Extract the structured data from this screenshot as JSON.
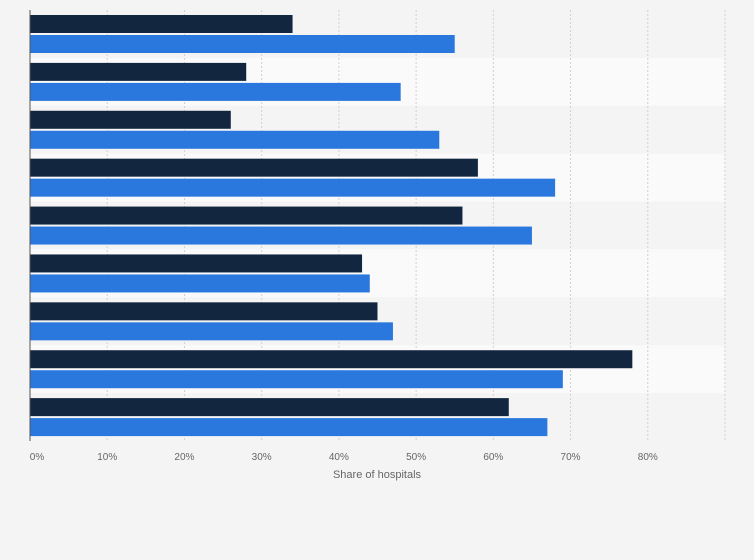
{
  "chart_data": {
    "type": "bar",
    "orientation": "horizontal",
    "categories": [
      "",
      "",
      "",
      "",
      "",
      "",
      "",
      "",
      ""
    ],
    "series": [
      {
        "values": [
          34,
          28,
          26,
          58,
          56,
          43,
          45,
          78,
          62
        ]
      },
      {
        "values": [
          55,
          48,
          53,
          68,
          65,
          44,
          47,
          69,
          67
        ]
      }
    ],
    "xlabel": "Share of hospitals",
    "xlim": [
      0,
      90
    ],
    "xticks": [
      0,
      10,
      20,
      30,
      40,
      50,
      60,
      70,
      80
    ],
    "xtick_labels": [
      "0%",
      "10%",
      "20%",
      "30%",
      "40%",
      "50%",
      "60%",
      "70%",
      "80%"
    ],
    "grid": true,
    "legend": "none",
    "colors": {
      "series": [
        "#13263f",
        "#2a78dd"
      ],
      "band_light": "#fafafa",
      "band_dark": "#f4f4f4",
      "grid": "#d0d0d0",
      "axis": "#555555"
    }
  }
}
